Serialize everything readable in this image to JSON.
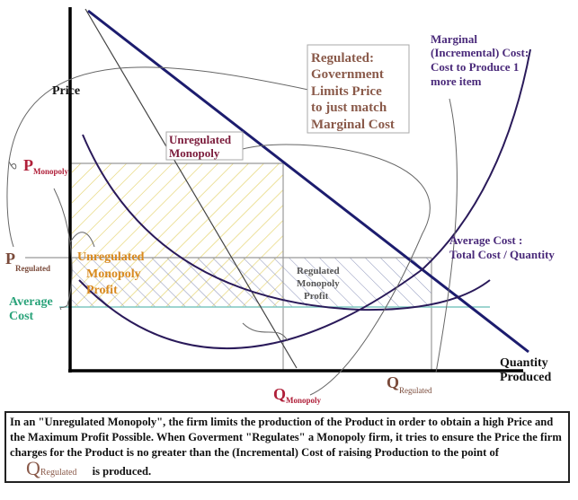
{
  "axes": {
    "y_label": "Price",
    "x_label_line1": "Quantity",
    "x_label_line2": "Produced"
  },
  "labels": {
    "p_monopoly": {
      "main": "P",
      "sub": "Monopoly"
    },
    "p_regulated": {
      "main": "P",
      "sub": "Regulated"
    },
    "average_cost_1": "Average",
    "average_cost_2": "Cost",
    "q_monopoly": {
      "main": "Q",
      "sub": "Monopoly"
    },
    "q_regulated": {
      "main": "Q",
      "sub": "Regulated"
    },
    "unregulated_box": [
      "Unregulated",
      "Monopoly"
    ],
    "regulated_box": [
      "Regulated:",
      "Government",
      "Limits Price",
      "to just match",
      "Marginal Cost"
    ],
    "marginal_cost": [
      "Marginal",
      "(Incremental) Cost:",
      "Cost to Produce 1",
      "more item"
    ],
    "average_cost_curve": [
      "Average Cost :",
      "Total Cost / Quantity"
    ],
    "unregulated_profit": [
      "Unregulated",
      "Monopoly",
      "Profit"
    ],
    "regulated_profit": [
      "Regulated",
      "Monopoly",
      "Profit"
    ]
  },
  "caption": {
    "text": "In an \"Unregulated Monopoly\", the firm limits the production of the Product in order to obtain a high Price and the Maximum Profit Possible.   When Goverment \"Regulates\" a Monopoly firm, it tries to ensure the Price the firm charges for the Product is no greater than the (Incremental) Cost of  raising Production to the point of",
    "q": "Q",
    "q_sub": "Regulated",
    "tail": "is produced."
  },
  "colors": {
    "demand": "#1c1c6e",
    "marginal_cost": "#4a2a6a",
    "monopoly_red": "#b0203a",
    "profit_orange": "#d98a20",
    "avg_cost_green": "#2aa37a",
    "regulated_brown": "#7a4a3a",
    "purple": "#4a2a7a"
  }
}
